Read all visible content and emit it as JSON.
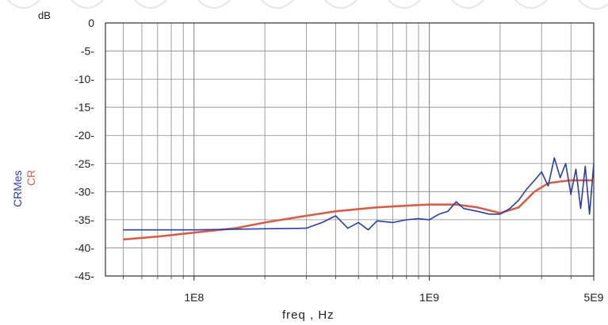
{
  "chart_data": {
    "type": "line",
    "x_scale": "log",
    "xlim": [
      42000000.0,
      5000000000.0
    ],
    "ylim": [
      -45,
      0
    ],
    "grid": true,
    "y_unit_label": "dB",
    "xlabel": "freq , Hz",
    "ylabels": [
      "CRMes",
      "CR"
    ],
    "y_ticks": [
      0,
      -5,
      -10,
      -15,
      -20,
      -25,
      -30,
      -35,
      -40,
      -45
    ],
    "y_tick_labels": [
      "0",
      "-5-",
      "-10-",
      "-15-",
      "-20-",
      "-25-",
      "-30-",
      "-35-",
      "-40-",
      "-45-"
    ],
    "x_ticks": [
      100000000.0,
      1000000000.0,
      5000000000.0
    ],
    "x_tick_labels": [
      "1E8",
      "1E9",
      "5E9"
    ],
    "colors": {
      "CRMes": "#2a3fa8",
      "CR": "#d4604a",
      "grid": "#8a8a8a",
      "axis": "#333333"
    },
    "series": [
      {
        "name": "CR",
        "x": [
          50000000.0,
          70000000.0,
          100000000.0,
          150000000.0,
          200000000.0,
          300000000.0,
          400000000.0,
          600000000.0,
          800000000.0,
          1000000000.0,
          1300000000.0,
          1600000000.0,
          2000000000.0,
          2400000000.0,
          2800000000.0,
          3200000000.0,
          3600000000.0,
          4000000000.0,
          4500000000.0,
          5000000000.0
        ],
        "values": [
          -38.5,
          -38.0,
          -37.3,
          -36.5,
          -35.5,
          -34.3,
          -33.5,
          -32.8,
          -32.5,
          -32.3,
          -32.3,
          -32.8,
          -33.8,
          -32.8,
          -30.0,
          -28.5,
          -28.2,
          -28.0,
          -28.0,
          -28.0
        ]
      },
      {
        "name": "CRMes",
        "x": [
          50000000.0,
          100000000.0,
          200000000.0,
          300000000.0,
          350000000.0,
          400000000.0,
          450000000.0,
          500000000.0,
          550000000.0,
          600000000.0,
          700000000.0,
          800000000.0,
          900000000.0,
          1000000000.0,
          1100000000.0,
          1200000000.0,
          1300000000.0,
          1400000000.0,
          1600000000.0,
          1800000000.0,
          2000000000.0,
          2200000000.0,
          2400000000.0,
          2600000000.0,
          2800000000.0,
          3000000000.0,
          3200000000.0,
          3400000000.0,
          3600000000.0,
          3800000000.0,
          4000000000.0,
          4200000000.0,
          4400000000.0,
          4600000000.0,
          4800000000.0,
          5000000000.0
        ],
        "values": [
          -36.8,
          -36.8,
          -36.6,
          -36.5,
          -35.5,
          -34.3,
          -36.5,
          -35.5,
          -36.8,
          -35.2,
          -35.5,
          -35.0,
          -34.8,
          -35.0,
          -34.0,
          -33.5,
          -31.8,
          -33.0,
          -33.5,
          -34.0,
          -34.0,
          -33.0,
          -31.5,
          -29.5,
          -28.0,
          -26.5,
          -29.0,
          -24.0,
          -27.5,
          -25.0,
          -30.5,
          -26.0,
          -33.0,
          -25.5,
          -34.0,
          -25.0
        ]
      }
    ]
  }
}
